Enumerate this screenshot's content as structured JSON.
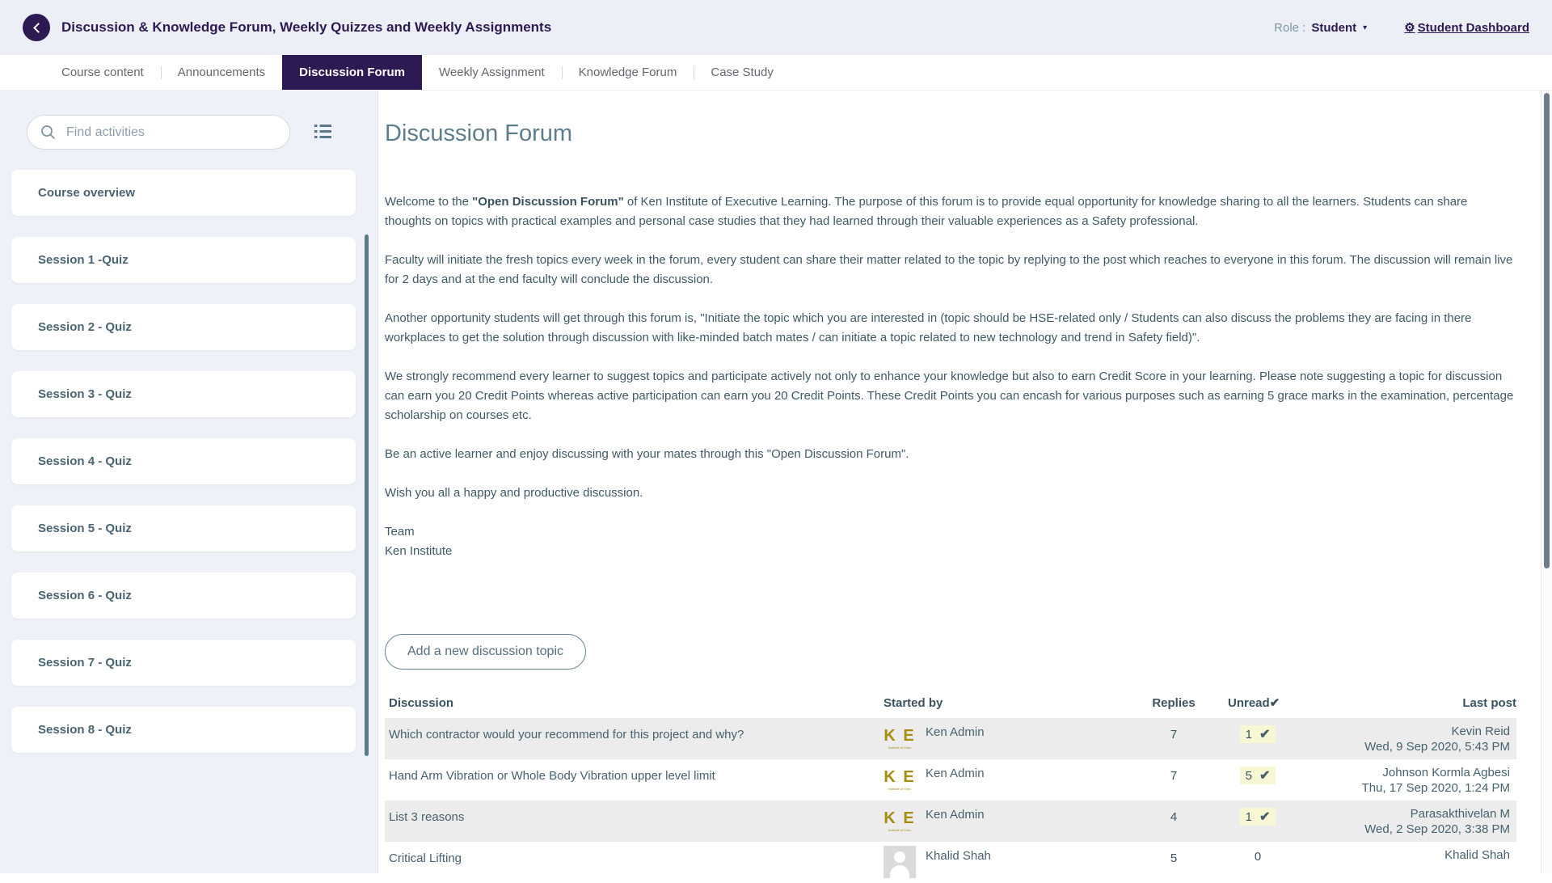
{
  "colors": {
    "accent_purple": "#2d1a52",
    "ke_gold": "#a68d0e",
    "unread_highlight": "#f8f7d4",
    "row_alt": "#ececec",
    "scroll_teal": "#5b7a8a"
  },
  "icons": {
    "gear": "⚙",
    "caret": "▾",
    "check": "✔"
  },
  "header": {
    "title": "Discussion & Knowledge Forum, Weekly Quizzes and Weekly Assignments",
    "role_label": "Role :",
    "role_value": "Student",
    "dashboard_label": "Student Dashboard"
  },
  "tabs": [
    {
      "label": "Course content",
      "active": false
    },
    {
      "label": "Announcements",
      "active": false
    },
    {
      "label": "Discussion Forum",
      "active": true
    },
    {
      "label": "Weekly Assignment",
      "active": false
    },
    {
      "label": "Knowledge Forum",
      "active": false
    },
    {
      "label": "Case Study",
      "active": false
    }
  ],
  "sidebar": {
    "search_placeholder": "Find activities",
    "items": [
      "Course overview",
      "Session 1 -Quiz",
      "Session 2 - Quiz",
      "Session 3 - Quiz",
      "Session 4 - Quiz",
      "Session 5 - Quiz",
      "Session 6 - Quiz",
      "Session 7 - Quiz",
      "Session 8 - Quiz"
    ]
  },
  "main": {
    "heading": "Discussion Forum",
    "intro": {
      "pre": "Welcome to the ",
      "bold": "\"Open Discussion Forum\"",
      "post": " of Ken Institute of Executive Learning. The purpose of this forum is to provide equal opportunity for knowledge sharing to all the learners. Students can share thoughts on topics with practical examples and personal case studies that they had learned through their valuable experiences as a Safety professional."
    },
    "paragraphs": [
      "Faculty will initiate the fresh topics every week in the forum, every student can share their matter related to the topic by replying to the post which reaches to everyone in this forum. The discussion will remain live for 2 days and at the end faculty will conclude the discussion.",
      "Another opportunity students will get through this forum is, \"Initiate the topic which you are interested in (topic should be HSE-related only / Students can also discuss the problems they are facing in there workplaces to get the solution through discussion with like-minded batch mates / can initiate a topic related to new technology and trend in Safety field)\".",
      "We strongly recommend every learner to suggest topics and participate actively not only to enhance your knowledge but also to earn Credit Score in your learning. Please note suggesting a topic for discussion can earn you 20 Credit Points whereas active participation can earn you 20 Credit Points. These Credit Points you can encash for various purposes such as earning 5 grace marks in the examination, percentage scholarship on courses etc.",
      "Be an active learner and enjoy discussing with your mates through this \"Open Discussion Forum\".",
      "Wish you all a happy and productive discussion."
    ],
    "signature": [
      "Team",
      "Ken Institute"
    ],
    "add_button_label": "Add a new discussion topic",
    "ke_logo": {
      "letters": "K E",
      "caption": "Institute of Exec"
    },
    "table": {
      "headers": {
        "discussion": "Discussion",
        "started_by": "Started by",
        "replies": "Replies",
        "unread": "Unread",
        "last_post": "Last post"
      },
      "rows": [
        {
          "discussion": "Which contractor would your recommend for this project and why?",
          "avatar": "ke-logo",
          "started_by": "Ken Admin",
          "replies": "7",
          "unread": "1",
          "unread_check": true,
          "last_post_name": "Kevin Reid",
          "last_post_date": "Wed, 9 Sep 2020, 5:43 PM"
        },
        {
          "discussion": "Hand Arm Vibration or Whole Body Vibration upper level limit",
          "avatar": "ke-logo",
          "started_by": "Ken Admin",
          "replies": "7",
          "unread": "5",
          "unread_check": true,
          "last_post_name": "Johnson Kormla Agbesi",
          "last_post_date": "Thu, 17 Sep 2020, 1:24 PM"
        },
        {
          "discussion": "List 3 reasons",
          "avatar": "ke-logo",
          "started_by": "Ken Admin",
          "replies": "4",
          "unread": "1",
          "unread_check": true,
          "last_post_name": "Parasakthivelan M",
          "last_post_date": "Wed, 2 Sep 2020, 3:38 PM"
        },
        {
          "discussion": "Critical Lifting",
          "avatar": "person",
          "started_by": "Khalid Shah",
          "replies": "5",
          "unread": "0",
          "unread_check": false,
          "last_post_name": "Khalid Shah",
          "last_post_date": ""
        }
      ]
    }
  }
}
